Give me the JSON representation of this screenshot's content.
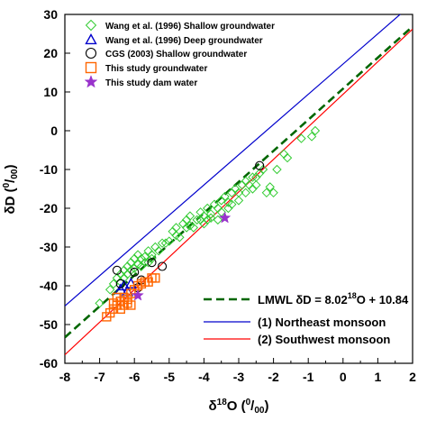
{
  "chart_data": {
    "type": "scatter",
    "xlabel": "δ18O (0/00)",
    "ylabel": "δD (0/00)",
    "xlabel_parts": {
      "delta": "δ",
      "sup": "18",
      "base": "O (",
      "num": "0",
      "sep": "/",
      "den": "00",
      "close": ")"
    },
    "ylabel_parts": {
      "base": "δD (",
      "num": "0",
      "sep": "/",
      "den": "00",
      "close": ")"
    },
    "xlim": [
      -8,
      2
    ],
    "ylim": [
      -60,
      30
    ],
    "xticks": [
      "-8",
      "-7",
      "-6",
      "-5",
      "-4",
      "-3",
      "-2",
      "-1",
      "0",
      "1",
      "2"
    ],
    "yticks": [
      "30",
      "20",
      "10",
      "0",
      "-10",
      "-20",
      "-30",
      "-40",
      "-50",
      "-60"
    ],
    "grid": false,
    "legend_placement": "top-left",
    "series": [
      {
        "name": "Wang et al. (1996) Shallow groundwater",
        "marker": "diamond",
        "color": "#33cc33",
        "points": [
          [
            -7,
            -44.5
          ],
          [
            -6.7,
            -41
          ],
          [
            -6.6,
            -39.5
          ],
          [
            -6.5,
            -38
          ],
          [
            -6.4,
            -37
          ],
          [
            -6.3,
            -36
          ],
          [
            -6.2,
            -35
          ],
          [
            -6.1,
            -34
          ],
          [
            -6,
            -33
          ],
          [
            -5.9,
            -32
          ],
          [
            -5.8,
            -33
          ],
          [
            -5.7,
            -32.5
          ],
          [
            -5.6,
            -31
          ],
          [
            -5.5,
            -32
          ],
          [
            -5.4,
            -30
          ],
          [
            -5.2,
            -29
          ],
          [
            -5,
            -28.5
          ],
          [
            -4.9,
            -26
          ],
          [
            -4.8,
            -25
          ],
          [
            -4.6,
            -24
          ],
          [
            -4.5,
            -23
          ],
          [
            -4.4,
            -22
          ],
          [
            -4.2,
            -23
          ],
          [
            -4.1,
            -21
          ],
          [
            -4,
            -22
          ],
          [
            -3.9,
            -20
          ],
          [
            -3.8,
            -21.5
          ],
          [
            -3.7,
            -19
          ],
          [
            -3.6,
            -20
          ],
          [
            -3.5,
            -18
          ],
          [
            -3.4,
            -17
          ],
          [
            -3.3,
            -18.5
          ],
          [
            -3.2,
            -16
          ],
          [
            -3.1,
            -15
          ],
          [
            -3,
            -16
          ],
          [
            -2.9,
            -14
          ],
          [
            -2.8,
            -13
          ],
          [
            -2.7,
            -14
          ],
          [
            -2.6,
            -12
          ],
          [
            -2.5,
            -12
          ],
          [
            -2.4,
            -11
          ],
          [
            -2.3,
            -10
          ],
          [
            -2.1,
            -14.5
          ],
          [
            -2,
            -16
          ],
          [
            -1.7,
            -6
          ],
          [
            -1.6,
            -7
          ],
          [
            -1.2,
            -2
          ],
          [
            -0.9,
            -1.5
          ],
          [
            -0.8,
            0
          ],
          [
            -6.2,
            -37
          ],
          [
            -6,
            -35.5
          ],
          [
            -5.8,
            -35
          ],
          [
            -5.6,
            -34
          ],
          [
            -5.3,
            -31
          ],
          [
            -4.8,
            -27
          ],
          [
            -4.5,
            -25
          ],
          [
            -3.9,
            -23
          ],
          [
            -3.5,
            -21
          ],
          [
            -4.3,
            -25
          ],
          [
            -3.6,
            -23
          ],
          [
            -2.2,
            -16
          ],
          [
            -6.4,
            -39
          ],
          [
            -6.1,
            -36
          ],
          [
            -5.9,
            -34.5
          ],
          [
            -5.7,
            -34
          ],
          [
            -5.5,
            -33
          ],
          [
            -4.7,
            -27.5
          ],
          [
            -4.4,
            -24.5
          ],
          [
            -4.1,
            -23
          ],
          [
            -3.8,
            -22.5
          ],
          [
            -3.3,
            -20
          ],
          [
            -3,
            -18
          ],
          [
            -2.8,
            -16
          ],
          [
            -2.6,
            -15
          ],
          [
            -1.9,
            -10
          ],
          [
            -6.3,
            -38
          ],
          [
            -5.1,
            -29
          ],
          [
            -4,
            -24
          ],
          [
            -3.2,
            -19
          ],
          [
            -2.5,
            -14
          ]
        ]
      },
      {
        "name": "Wang et al. (1996) Deep groundwater",
        "marker": "triangle",
        "color": "#0000cc",
        "points": [
          [
            -6.3,
            -40
          ],
          [
            -6.2,
            -41.5
          ],
          [
            -6.1,
            -39.5
          ],
          [
            -6.4,
            -41
          ]
        ]
      },
      {
        "name": "CGS (2003) Shallow groundwater",
        "marker": "circle",
        "color": "#000000",
        "points": [
          [
            -6.5,
            -36
          ],
          [
            -6,
            -36.5
          ],
          [
            -5.2,
            -35
          ],
          [
            -5.8,
            -38.5
          ],
          [
            -6.4,
            -39.5
          ],
          [
            -2.4,
            -9
          ],
          [
            -5.5,
            -34
          ],
          [
            -5.9,
            -40.5
          ]
        ]
      },
      {
        "name": "This study groundwater",
        "marker": "square",
        "color": "#ff6600",
        "points": [
          [
            -6.8,
            -48
          ],
          [
            -6.6,
            -46
          ],
          [
            -6.5,
            -45
          ],
          [
            -6.4,
            -44
          ],
          [
            -6.3,
            -43
          ],
          [
            -6.2,
            -43.5
          ],
          [
            -6.1,
            -42
          ],
          [
            -6,
            -41
          ],
          [
            -5.9,
            -40
          ],
          [
            -5.8,
            -39.5
          ],
          [
            -5.7,
            -39
          ],
          [
            -5.6,
            -39
          ],
          [
            -5.5,
            -38
          ],
          [
            -5.4,
            -38
          ],
          [
            -6.7,
            -47
          ],
          [
            -6.4,
            -46
          ],
          [
            -6.3,
            -45
          ],
          [
            -6.2,
            -44.5
          ],
          [
            -6.5,
            -43
          ],
          [
            -6.6,
            -44.5
          ],
          [
            -6.1,
            -45
          ]
        ]
      },
      {
        "name": "This study dam water",
        "marker": "star",
        "color": "#9933cc",
        "points": [
          [
            -3.4,
            -22.5
          ],
          [
            -5.9,
            -42.5
          ]
        ]
      }
    ],
    "lines": [
      {
        "name": "LMWL",
        "equation": "δD = 8.0218O + 10.84",
        "label_parts": {
          "name": "LMWL",
          "eq": " δD = 8.02",
          "sup": "18",
          "tail": "O + 10.84"
        },
        "slope": 8.02,
        "intercept": 10.84,
        "color": "#006600",
        "dash": true
      },
      {
        "name": "(1) Northeast monsoon",
        "slope": 7.8,
        "intercept": 17.2,
        "color": "#0000cc",
        "dash": false
      },
      {
        "name": "(2) Southwest monsoon",
        "slope": 8.4,
        "intercept": 9.4,
        "color": "#ff0000",
        "dash": false
      }
    ]
  }
}
